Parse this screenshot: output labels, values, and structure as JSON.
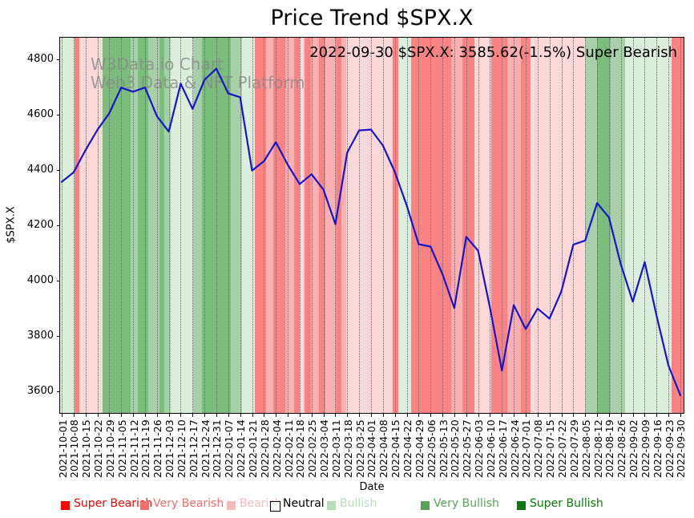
{
  "chart_data": {
    "type": "line",
    "title": "Price Trend $SPX.X",
    "xlabel": "Date",
    "ylabel": "$SPX.X",
    "annotation": "2022-09-30 $SPX.X: 3585.62(-1.5%) Super Bearish",
    "watermark": [
      "W3Data.io Chart",
      "Web3 Data & NFT Platform"
    ],
    "line_color": "#1515cd",
    "grid": "vertical dotted gridline at every weekly tick",
    "legend_position": "bottom",
    "ylim": [
      3522,
      4878
    ],
    "yticks": [
      "4800",
      "4600",
      "4400",
      "4200",
      "4000",
      "3800",
      "3600"
    ],
    "x": [
      "2021-10-01",
      "2021-10-08",
      "2021-10-15",
      "2021-10-22",
      "2021-10-29",
      "2021-11-05",
      "2021-11-12",
      "2021-11-19",
      "2021-11-26",
      "2021-12-03",
      "2021-12-10",
      "2021-12-17",
      "2021-12-24",
      "2021-12-31",
      "2022-01-07",
      "2022-01-14",
      "2022-01-21",
      "2022-01-28",
      "2022-02-04",
      "2022-02-11",
      "2022-02-18",
      "2022-02-25",
      "2022-03-04",
      "2022-03-11",
      "2022-03-18",
      "2022-03-25",
      "2022-04-01",
      "2022-04-08",
      "2022-04-15",
      "2022-04-22",
      "2022-04-29",
      "2022-05-06",
      "2022-05-13",
      "2022-05-20",
      "2022-05-27",
      "2022-06-03",
      "2022-06-10",
      "2022-06-17",
      "2022-06-24",
      "2022-07-01",
      "2022-07-08",
      "2022-07-15",
      "2022-07-22",
      "2022-07-29",
      "2022-08-05",
      "2022-08-12",
      "2022-08-19",
      "2022-08-26",
      "2022-09-02",
      "2022-09-09",
      "2022-09-16",
      "2022-09-23",
      "2022-09-30"
    ],
    "y": [
      4357.04,
      4391.34,
      4471.37,
      4544.9,
      4605.38,
      4697.53,
      4682.85,
      4697.96,
      4594.62,
      4538.43,
      4712.02,
      4620.64,
      4725.79,
      4766.18,
      4677.03,
      4662.85,
      4397.94,
      4431.85,
      4500.53,
      4418.64,
      4348.87,
      4384.65,
      4328.87,
      4204.31,
      4463.12,
      4543.06,
      4545.86,
      4488.28,
      4392.59,
      4271.78,
      4131.93,
      4123.34,
      4023.89,
      3901.36,
      4158.24,
      4108.54,
      3900.86,
      3674.84,
      3911.74,
      3825.33,
      3899.38,
      3863.16,
      3961.63,
      4130.29,
      4145.19,
      4280.15,
      4228.48,
      4057.66,
      3924.26,
      4067.36,
      3873.33,
      3693.23,
      3585.62
    ],
    "sentiment_levels": {
      "super_bearish": {
        "label": "Super Bearish",
        "legend_color": "#ff0000",
        "band_color": "#fb8383"
      },
      "very_bearish": {
        "label": "Very Bearish",
        "legend_color": "#f76c6c",
        "band_color": "#fbb1b1"
      },
      "bearish": {
        "label": "Bearish",
        "legend_color": "#fbb9b9",
        "band_color": "#fdd8d8"
      },
      "neutral": {
        "label": "Neutral",
        "legend_color": "#ffffff",
        "band_color": "#ffffff"
      },
      "bullish": {
        "label": "Bullish",
        "legend_color": "#b9dcb9",
        "band_color": "#dcefdc"
      },
      "very_bullish": {
        "label": "Very Bullish",
        "legend_color": "#57a457",
        "band_color": "#a8d0a8"
      },
      "super_bullish": {
        "label": "Super Bullish",
        "legend_color": "#0b7a0b",
        "band_color": "#7cbc7c"
      }
    },
    "legend_order": [
      "super_bearish",
      "very_bearish",
      "bearish",
      "neutral",
      "bullish",
      "very_bullish",
      "super_bullish"
    ],
    "bands_unit": "week index along x (0 = 2021-10-01, 52 = 2022-09-30)",
    "bands": [
      [
        -0.14,
        1.08,
        "bullish"
      ],
      [
        1.08,
        1.48,
        "super_bearish"
      ],
      [
        1.48,
        3.44,
        "bearish"
      ],
      [
        3.44,
        5.79,
        "super_bullish"
      ],
      [
        5.79,
        6.4,
        "very_bullish"
      ],
      [
        6.4,
        7.27,
        "super_bullish"
      ],
      [
        7.27,
        8.22,
        "very_bullish"
      ],
      [
        8.22,
        8.62,
        "super_bullish"
      ],
      [
        8.62,
        9.16,
        "very_bullish"
      ],
      [
        9.16,
        11.05,
        "bullish"
      ],
      [
        11.05,
        11.79,
        "very_bullish"
      ],
      [
        11.79,
        14.21,
        "super_bullish"
      ],
      [
        14.21,
        15.16,
        "very_bullish"
      ],
      [
        15.16,
        16.23,
        "bullish"
      ],
      [
        16.23,
        17.18,
        "super_bearish"
      ],
      [
        17.18,
        17.78,
        "very_bearish"
      ],
      [
        17.78,
        18.79,
        "super_bearish"
      ],
      [
        18.79,
        19.53,
        "very_bearish"
      ],
      [
        19.53,
        20.0,
        "super_bearish"
      ],
      [
        20.0,
        20.41,
        "bearish"
      ],
      [
        20.41,
        20.95,
        "super_bearish"
      ],
      [
        20.95,
        21.62,
        "very_bearish"
      ],
      [
        21.62,
        22.16,
        "super_bearish"
      ],
      [
        22.16,
        23.03,
        "very_bearish"
      ],
      [
        23.03,
        23.51,
        "super_bearish"
      ],
      [
        23.51,
        23.91,
        "very_bearish"
      ],
      [
        23.91,
        27.82,
        "bearish"
      ],
      [
        27.82,
        28.29,
        "super_bearish"
      ],
      [
        28.29,
        29.37,
        "bullish"
      ],
      [
        29.37,
        32.73,
        "super_bearish"
      ],
      [
        32.73,
        33.68,
        "very_bearish"
      ],
      [
        33.68,
        34.69,
        "super_bearish"
      ],
      [
        34.69,
        36.1,
        "bearish"
      ],
      [
        36.1,
        37.45,
        "super_bearish"
      ],
      [
        37.45,
        38.59,
        "very_bearish"
      ],
      [
        38.59,
        39.4,
        "super_bearish"
      ],
      [
        39.4,
        43.98,
        "bearish"
      ],
      [
        43.98,
        44.99,
        "very_bullish"
      ],
      [
        44.99,
        46.13,
        "super_bullish"
      ],
      [
        46.13,
        47.35,
        "very_bullish"
      ],
      [
        47.35,
        51.25,
        "bullish"
      ],
      [
        51.25,
        52.27,
        "super_bearish"
      ]
    ]
  }
}
